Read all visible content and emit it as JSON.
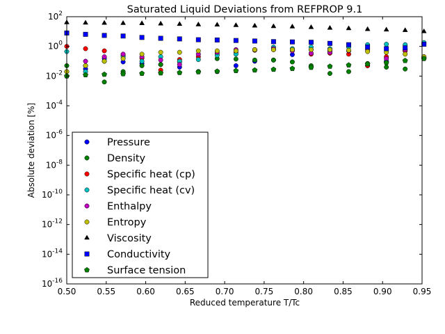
{
  "chart_data": {
    "type": "scatter",
    "title": "Saturated Liquid Deviations from REFPROP 9.1",
    "xlabel": "Reduced temperature T/Tc",
    "ylabel": "Absolute deviation [%]",
    "xlim": [
      0.5,
      0.95
    ],
    "ylim": [
      1e-16,
      100
    ],
    "yscale": "log",
    "x_ticks": [
      "0.50",
      "0.55",
      "0.60",
      "0.65",
      "0.70",
      "0.75",
      "0.80",
      "0.85",
      "0.90",
      "0.95"
    ],
    "y_tick_exponents": [
      "-16",
      "-14",
      "-12",
      "-10",
      "-8",
      "-6",
      "-4",
      "-2",
      "0",
      "2"
    ],
    "y_tick_base": "10",
    "legend_position": "lower left",
    "x": [
      0.5,
      0.5238,
      0.5476,
      0.5714,
      0.5952,
      0.619,
      0.6429,
      0.6667,
      0.6905,
      0.7143,
      0.7381,
      0.7619,
      0.7857,
      0.8095,
      0.8333,
      0.8571,
      0.881,
      0.9048,
      0.9286,
      0.9524
    ],
    "series": [
      {
        "name": "Pressure",
        "color": "#0000ff",
        "marker": "circle",
        "values": [
          0.02,
          0.03,
          0.15,
          0.09,
          0.07,
          0.06,
          0.04,
          0.02,
          0.02,
          0.05,
          0.1,
          0.12,
          0.28,
          0.6,
          0.5,
          1.0,
          0.05,
          0.1,
          0.5,
          1.5
        ]
      },
      {
        "name": "Density",
        "color": "#008000",
        "marker": "circle",
        "values": [
          0.05,
          0.05,
          0.004,
          0.02,
          0.05,
          0.06,
          0.09,
          0.02,
          0.15,
          0.14,
          0.12,
          0.12,
          0.09,
          0.05,
          0.015,
          0.02,
          0.07,
          0.04,
          0.03,
          0.2
        ]
      },
      {
        "name": "Specific heat (cp)",
        "color": "#ff0000",
        "marker": "circle",
        "values": [
          1.0,
          0.7,
          0.5,
          0.25,
          0.16,
          0.025,
          0.13,
          0.2,
          0.3,
          0.4,
          0.55,
          0.6,
          0.6,
          0.3,
          0.35,
          0.3,
          0.05,
          0.2,
          0.5,
          0.15
        ]
      },
      {
        "name": "Specific heat (cv)",
        "color": "#00bfbf",
        "marker": "circle",
        "values": [
          0.45,
          0.02,
          0.1,
          0.2,
          0.1,
          0.2,
          0.1,
          0.13,
          0.25,
          0.3,
          0.6,
          0.9,
          0.7,
          0.9,
          0.7,
          0.9,
          1.3,
          1.4,
          1.3,
          1.8
        ]
      },
      {
        "name": "Enthalpy",
        "color": "#bf00bf",
        "marker": "circle",
        "values": [
          0.01,
          0.1,
          0.2,
          0.3,
          0.2,
          0.12,
          0.06,
          0.3,
          0.4,
          0.6,
          0.6,
          0.7,
          0.5,
          0.35,
          0.4,
          0.5,
          0.6,
          0.15,
          0.6,
          0.2
        ]
      },
      {
        "name": "Entropy",
        "color": "#bfbf00",
        "marker": "circle",
        "values": [
          0.02,
          0.05,
          0.1,
          0.15,
          0.3,
          0.4,
          0.4,
          0.5,
          0.5,
          0.5,
          0.6,
          0.6,
          0.6,
          0.6,
          0.6,
          0.55,
          0.45,
          0.4,
          0.3,
          0.2
        ]
      },
      {
        "name": "Viscosity",
        "color": "#000000",
        "marker": "triangle",
        "values": [
          40,
          38,
          37,
          36,
          35,
          33,
          31,
          29,
          28,
          26,
          24,
          22,
          21,
          19,
          17,
          16,
          14,
          13,
          12,
          10
        ]
      },
      {
        "name": "Conductivity",
        "color": "#0000ff",
        "marker": "square",
        "values": [
          8,
          6.5,
          5.5,
          5,
          4,
          3.5,
          3.2,
          2.8,
          2.7,
          2.5,
          2.3,
          2.1,
          2.0,
          1.9,
          1.6,
          1.3,
          0.9,
          0.7,
          0.8,
          1.4
        ]
      },
      {
        "name": "Surface tension",
        "color": "#008000",
        "marker": "pentagon",
        "values": [
          0.01,
          0.012,
          0.013,
          0.014,
          0.015,
          0.016,
          0.017,
          0.019,
          0.021,
          0.023,
          0.025,
          0.028,
          0.032,
          0.038,
          0.045,
          0.055,
          0.065,
          0.08,
          0.11,
          0.15
        ]
      }
    ]
  }
}
